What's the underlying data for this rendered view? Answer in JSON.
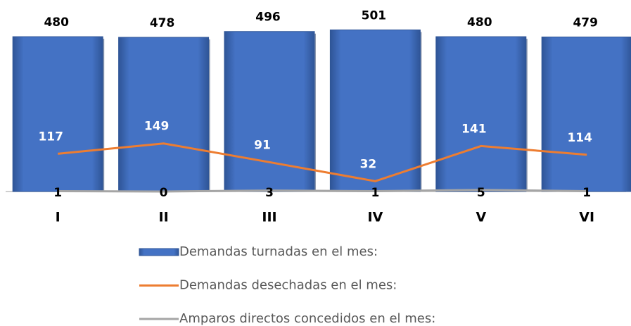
{
  "chart_data": {
    "type": "bar",
    "categories": [
      "I",
      "II",
      "III",
      "IV",
      "V",
      "VI"
    ],
    "series": [
      {
        "name": "Demandas turnadas en el mes:",
        "type": "bar",
        "color": "#4472c4",
        "values": [
          480,
          478,
          496,
          501,
          480,
          479
        ]
      },
      {
        "name": "Demandas desechadas en el mes:",
        "type": "line",
        "color": "#ed7d31",
        "values": [
          117,
          149,
          91,
          32,
          141,
          114
        ]
      },
      {
        "name": "Amparos directos concedidos en el mes:",
        "type": "line",
        "color": "#a5a5a5",
        "values": [
          1,
          0,
          3,
          1,
          5,
          1
        ]
      }
    ],
    "ylim": [
      0,
      550
    ],
    "legend": "bottom"
  }
}
